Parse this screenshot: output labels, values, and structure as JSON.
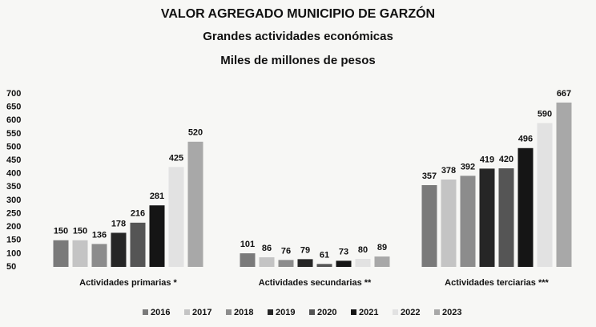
{
  "chart_data": {
    "type": "bar",
    "title": "VALOR AGREGADO MUNICIPIO DE GARZÓN",
    "subtitle": "Grandes actividades económicas",
    "units": "Miles de millones de pesos",
    "categories": [
      "Actividades primarias *",
      "Actividades secundarias **",
      "Actividades terciarias ***"
    ],
    "series": [
      {
        "name": "2016",
        "color": "#7a7a7a",
        "values": [
          150,
          101,
          357
        ]
      },
      {
        "name": "2017",
        "color": "#c4c4c4",
        "values": [
          150,
          86,
          378
        ]
      },
      {
        "name": "2018",
        "color": "#8c8c8c",
        "values": [
          136,
          76,
          392
        ]
      },
      {
        "name": "2019",
        "color": "#262626",
        "values": [
          178,
          79,
          419
        ]
      },
      {
        "name": "2020",
        "color": "#555555",
        "values": [
          216,
          61,
          420
        ]
      },
      {
        "name": "2021",
        "color": "#151515",
        "values": [
          281,
          73,
          496
        ]
      },
      {
        "name": "2022",
        "color": "#e2e2e2",
        "values": [
          425,
          80,
          590
        ]
      },
      {
        "name": "2023",
        "color": "#a8a8a8",
        "values": [
          520,
          89,
          667
        ]
      }
    ],
    "ylim": [
      50,
      700
    ],
    "yticks": [
      50,
      100,
      150,
      200,
      250,
      300,
      350,
      400,
      450,
      500,
      550,
      600,
      650,
      700
    ],
    "grid": false
  }
}
